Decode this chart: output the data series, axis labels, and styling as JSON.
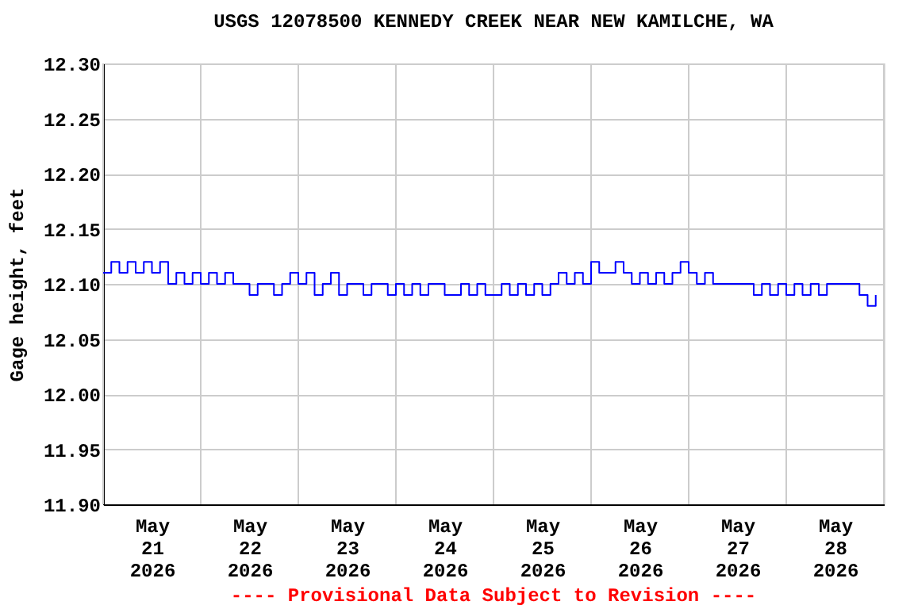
{
  "chart_data": {
    "type": "step",
    "title": "USGS 12078500 KENNEDY CREEK NEAR NEW KAMILCHE, WA",
    "ylabel": "Gage height, feet",
    "annotations": [
      "---- Provisional Data Subject to Revision ----"
    ],
    "xlim": [
      "2026-05-21T00:00",
      "2026-05-29T00:00"
    ],
    "xticks": [
      {
        "value": "2026-05-21T00:00",
        "label": null
      },
      {
        "value": "2026-05-21T12:00",
        "label": "May\n21\n2026"
      },
      {
        "value": "2026-05-22T00:00",
        "label": null
      },
      {
        "value": "2026-05-22T12:00",
        "label": "May\n22\n2026"
      },
      {
        "value": "2026-05-23T00:00",
        "label": null
      },
      {
        "value": "2026-05-23T12:00",
        "label": "May\n23\n2026"
      },
      {
        "value": "2026-05-24T00:00",
        "label": null
      },
      {
        "value": "2026-05-24T12:00",
        "label": "May\n24\n2026"
      },
      {
        "value": "2026-05-25T00:00",
        "label": null
      },
      {
        "value": "2026-05-25T12:00",
        "label": "May\n25\n2026"
      },
      {
        "value": "2026-05-26T00:00",
        "label": null
      },
      {
        "value": "2026-05-26T12:00",
        "label": "May\n26\n2026"
      },
      {
        "value": "2026-05-27T00:00",
        "label": null
      },
      {
        "value": "2026-05-27T12:00",
        "label": "May\n27\n2026"
      },
      {
        "value": "2026-05-28T00:00",
        "label": null
      },
      {
        "value": "2026-05-28T12:00",
        "label": "May\n28\n2026"
      },
      {
        "value": "2026-05-29T00:00",
        "label": null
      }
    ],
    "ylim": [
      11.9,
      12.3
    ],
    "yticks": [
      {
        "value": 11.9,
        "label": "11.90"
      },
      {
        "value": 11.95,
        "label": "11.95"
      },
      {
        "value": 12.0,
        "label": "12.00"
      },
      {
        "value": 12.05,
        "label": "12.05"
      },
      {
        "value": 12.1,
        "label": "12.10"
      },
      {
        "value": 12.15,
        "label": "12.15"
      },
      {
        "value": 12.2,
        "label": "12.20"
      },
      {
        "value": 12.25,
        "label": "12.25"
      },
      {
        "value": 12.3,
        "label": "12.30"
      }
    ],
    "grid": true,
    "series": [
      {
        "color": "#0000ff",
        "x": [
          "2026-05-21T00:00",
          "2026-05-21T02:00",
          "2026-05-21T04:00",
          "2026-05-21T06:00",
          "2026-05-21T08:00",
          "2026-05-21T10:00",
          "2026-05-21T12:00",
          "2026-05-21T14:00",
          "2026-05-21T16:00",
          "2026-05-21T18:00",
          "2026-05-21T20:00",
          "2026-05-21T22:00",
          "2026-05-22T00:00",
          "2026-05-22T02:00",
          "2026-05-22T04:00",
          "2026-05-22T06:00",
          "2026-05-22T08:00",
          "2026-05-22T10:00",
          "2026-05-22T12:00",
          "2026-05-22T14:00",
          "2026-05-22T16:00",
          "2026-05-22T18:00",
          "2026-05-22T20:00",
          "2026-05-22T22:00",
          "2026-05-23T00:00",
          "2026-05-23T02:00",
          "2026-05-23T04:00",
          "2026-05-23T06:00",
          "2026-05-23T08:00",
          "2026-05-23T10:00",
          "2026-05-23T12:00",
          "2026-05-23T14:00",
          "2026-05-23T16:00",
          "2026-05-23T18:00",
          "2026-05-23T20:00",
          "2026-05-23T22:00",
          "2026-05-24T00:00",
          "2026-05-24T02:00",
          "2026-05-24T04:00",
          "2026-05-24T06:00",
          "2026-05-24T08:00",
          "2026-05-24T10:00",
          "2026-05-24T12:00",
          "2026-05-24T14:00",
          "2026-05-24T16:00",
          "2026-05-24T18:00",
          "2026-05-24T20:00",
          "2026-05-24T22:00",
          "2026-05-25T00:00",
          "2026-05-25T02:00",
          "2026-05-25T04:00",
          "2026-05-25T06:00",
          "2026-05-25T08:00",
          "2026-05-25T10:00",
          "2026-05-25T12:00",
          "2026-05-25T14:00",
          "2026-05-25T16:00",
          "2026-05-25T18:00",
          "2026-05-25T20:00",
          "2026-05-25T22:00",
          "2026-05-26T00:00",
          "2026-05-26T02:00",
          "2026-05-26T04:00",
          "2026-05-26T06:00",
          "2026-05-26T08:00",
          "2026-05-26T10:00",
          "2026-05-26T12:00",
          "2026-05-26T14:00",
          "2026-05-26T16:00",
          "2026-05-26T18:00",
          "2026-05-26T20:00",
          "2026-05-26T22:00",
          "2026-05-27T00:00",
          "2026-05-27T02:00",
          "2026-05-27T04:00",
          "2026-05-27T06:00",
          "2026-05-27T08:00",
          "2026-05-27T10:00",
          "2026-05-27T12:00",
          "2026-05-27T14:00",
          "2026-05-27T16:00",
          "2026-05-27T18:00",
          "2026-05-27T20:00",
          "2026-05-27T22:00",
          "2026-05-28T00:00",
          "2026-05-28T02:00",
          "2026-05-28T04:00",
          "2026-05-28T06:00",
          "2026-05-28T08:00",
          "2026-05-28T10:00",
          "2026-05-28T12:00",
          "2026-05-28T14:00",
          "2026-05-28T16:00",
          "2026-05-28T18:00",
          "2026-05-28T20:00",
          "2026-05-28T22:00"
        ],
        "values": [
          12.11,
          12.12,
          12.11,
          12.12,
          12.11,
          12.12,
          12.11,
          12.12,
          12.1,
          12.11,
          12.1,
          12.11,
          12.1,
          12.11,
          12.1,
          12.11,
          12.1,
          12.1,
          12.09,
          12.1,
          12.1,
          12.09,
          12.1,
          12.11,
          12.1,
          12.11,
          12.09,
          12.1,
          12.11,
          12.09,
          12.1,
          12.1,
          12.09,
          12.1,
          12.1,
          12.09,
          12.1,
          12.09,
          12.1,
          12.09,
          12.1,
          12.1,
          12.09,
          12.09,
          12.1,
          12.09,
          12.1,
          12.09,
          12.09,
          12.1,
          12.09,
          12.1,
          12.09,
          12.1,
          12.09,
          12.1,
          12.11,
          12.1,
          12.11,
          12.1,
          12.12,
          12.11,
          12.11,
          12.12,
          12.11,
          12.1,
          12.11,
          12.1,
          12.11,
          12.1,
          12.11,
          12.12,
          12.11,
          12.1,
          12.11,
          12.1,
          12.1,
          12.1,
          12.1,
          12.1,
          12.09,
          12.1,
          12.09,
          12.1,
          12.09,
          12.1,
          12.09,
          12.1,
          12.09,
          12.1,
          12.1,
          12.1,
          12.1,
          12.09,
          12.08,
          12.09
        ]
      }
    ]
  }
}
